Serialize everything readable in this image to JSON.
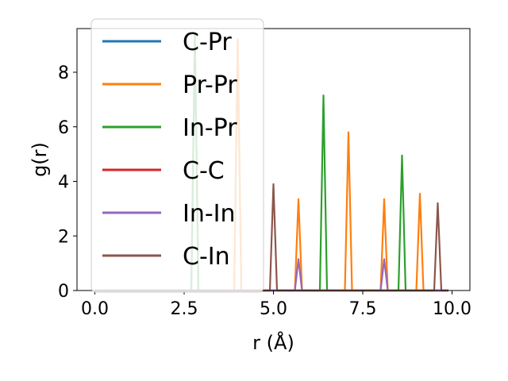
{
  "chart_data": {
    "type": "line",
    "title": "",
    "xlabel": "r (Å)",
    "ylabel": "g(r)",
    "xlim": [
      -0.5,
      10.5
    ],
    "ylim": [
      0,
      9.6
    ],
    "xticks": [
      0.0,
      2.5,
      5.0,
      7.5,
      10.0
    ],
    "xtick_labels": [
      "0.0",
      "2.5",
      "5.0",
      "7.5",
      "10.0"
    ],
    "yticks": [
      0,
      2,
      4,
      6,
      8
    ],
    "ytick_labels": [
      "0",
      "2",
      "4",
      "6",
      "8"
    ],
    "x_range": [
      0.0,
      9.9
    ],
    "grid": false,
    "legend_position": "upper-left",
    "series": [
      {
        "name": "C-Pr",
        "color": "#1f77b4",
        "peaks": [
          [
            2.8,
            9.4
          ],
          [
            4.0,
            9.2
          ]
        ]
      },
      {
        "name": "Pr-Pr",
        "color": "#ff7f0e",
        "peaks": [
          [
            4.0,
            9.2
          ],
          [
            5.7,
            3.35
          ],
          [
            7.1,
            5.8
          ],
          [
            8.1,
            3.35
          ],
          [
            9.1,
            3.55
          ]
        ]
      },
      {
        "name": "In-Pr",
        "color": "#2ca02c",
        "peaks": [
          [
            2.8,
            9.4
          ],
          [
            6.4,
            7.15
          ],
          [
            8.6,
            4.95
          ]
        ]
      },
      {
        "name": "C-C",
        "color": "#d62728",
        "peaks": []
      },
      {
        "name": "In-In",
        "color": "#9467bd",
        "peaks": [
          [
            5.7,
            1.15
          ],
          [
            8.1,
            1.15
          ]
        ]
      },
      {
        "name": "C-In",
        "color": "#8c564b",
        "peaks": [
          [
            5.0,
            3.9
          ],
          [
            9.6,
            3.2
          ]
        ]
      }
    ]
  }
}
